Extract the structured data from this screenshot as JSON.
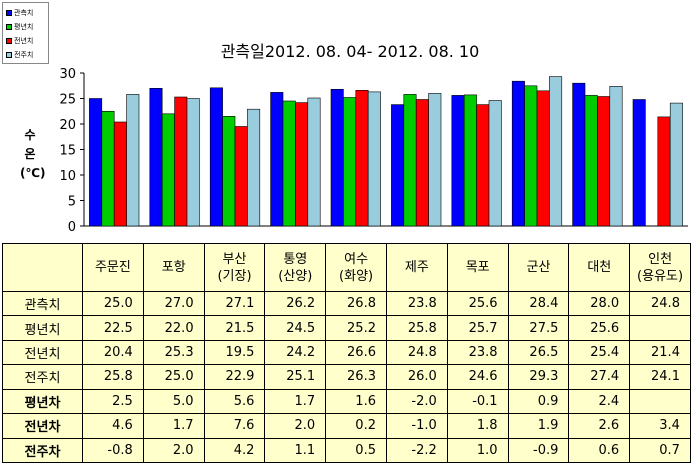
{
  "chart_data": {
    "type": "bar",
    "title": "관측일2012. 08. 04-  2012. 08. 10",
    "ylabel_lines": [
      "수",
      "온",
      "(℃)"
    ],
    "ylim": [
      0,
      30
    ],
    "yticks": [
      0,
      5,
      10,
      15,
      20,
      25,
      30
    ],
    "grid": false,
    "legend_position": "top-left",
    "categories": [
      "주문진",
      "포항",
      "부산\n(기장)",
      "통영\n(산양)",
      "여수\n(화양)",
      "제주",
      "목포",
      "군산",
      "대천",
      "인천\n(용유도)"
    ],
    "series": [
      {
        "name": "관측치",
        "color": "#0000ff",
        "values": [
          25.0,
          27.0,
          27.1,
          26.2,
          26.8,
          23.8,
          25.6,
          28.4,
          28.0,
          24.8
        ]
      },
      {
        "name": "평년치",
        "color": "#00cc00",
        "values": [
          22.5,
          22.0,
          21.5,
          24.5,
          25.2,
          25.8,
          25.7,
          27.5,
          25.6,
          null
        ]
      },
      {
        "name": "전년치",
        "color": "#ff0000",
        "values": [
          20.4,
          25.3,
          19.5,
          24.2,
          26.6,
          24.8,
          23.8,
          26.5,
          25.4,
          21.4
        ]
      },
      {
        "name": "전주치",
        "color": "#99ccdd",
        "values": [
          25.8,
          25.0,
          22.9,
          25.1,
          26.3,
          26.0,
          24.6,
          29.3,
          27.4,
          24.1
        ]
      }
    ]
  },
  "table": {
    "header": [
      {
        "l1": "주문진",
        "l2": ""
      },
      {
        "l1": "포항",
        "l2": ""
      },
      {
        "l1": "부산",
        "l2": "(기장)"
      },
      {
        "l1": "통영",
        "l2": "(산양)"
      },
      {
        "l1": "여수",
        "l2": "(화양)"
      },
      {
        "l1": "제주",
        "l2": ""
      },
      {
        "l1": "목포",
        "l2": ""
      },
      {
        "l1": "군산",
        "l2": ""
      },
      {
        "l1": "대천",
        "l2": ""
      },
      {
        "l1": "인천",
        "l2": "(용유도)"
      }
    ],
    "rows": [
      {
        "label": "관측치",
        "bold": false,
        "cells": [
          "25.0",
          "27.0",
          "27.1",
          "26.2",
          "26.8",
          "23.8",
          "25.6",
          "28.4",
          "28.0",
          "24.8"
        ]
      },
      {
        "label": "평년치",
        "bold": false,
        "cells": [
          "22.5",
          "22.0",
          "21.5",
          "24.5",
          "25.2",
          "25.8",
          "25.7",
          "27.5",
          "25.6",
          ""
        ]
      },
      {
        "label": "전년치",
        "bold": false,
        "cells": [
          "20.4",
          "25.3",
          "19.5",
          "24.2",
          "26.6",
          "24.8",
          "23.8",
          "26.5",
          "25.4",
          "21.4"
        ]
      },
      {
        "label": "전주치",
        "bold": false,
        "cells": [
          "25.8",
          "25.0",
          "22.9",
          "25.1",
          "26.3",
          "26.0",
          "24.6",
          "29.3",
          "27.4",
          "24.1"
        ]
      },
      {
        "label": "평년차",
        "bold": true,
        "cells": [
          "2.5",
          "5.0",
          "5.6",
          "1.7",
          "1.6",
          "-2.0",
          "-0.1",
          "0.9",
          "2.4",
          ""
        ]
      },
      {
        "label": "전년차",
        "bold": true,
        "cells": [
          "4.6",
          "1.7",
          "7.6",
          "2.0",
          "0.2",
          "-1.0",
          "1.8",
          "1.9",
          "2.6",
          "3.4"
        ]
      },
      {
        "label": "전주차",
        "bold": true,
        "cells": [
          "-0.8",
          "2.0",
          "4.2",
          "1.1",
          "0.5",
          "-2.2",
          "1.0",
          "-0.9",
          "0.6",
          "0.7"
        ]
      }
    ]
  }
}
